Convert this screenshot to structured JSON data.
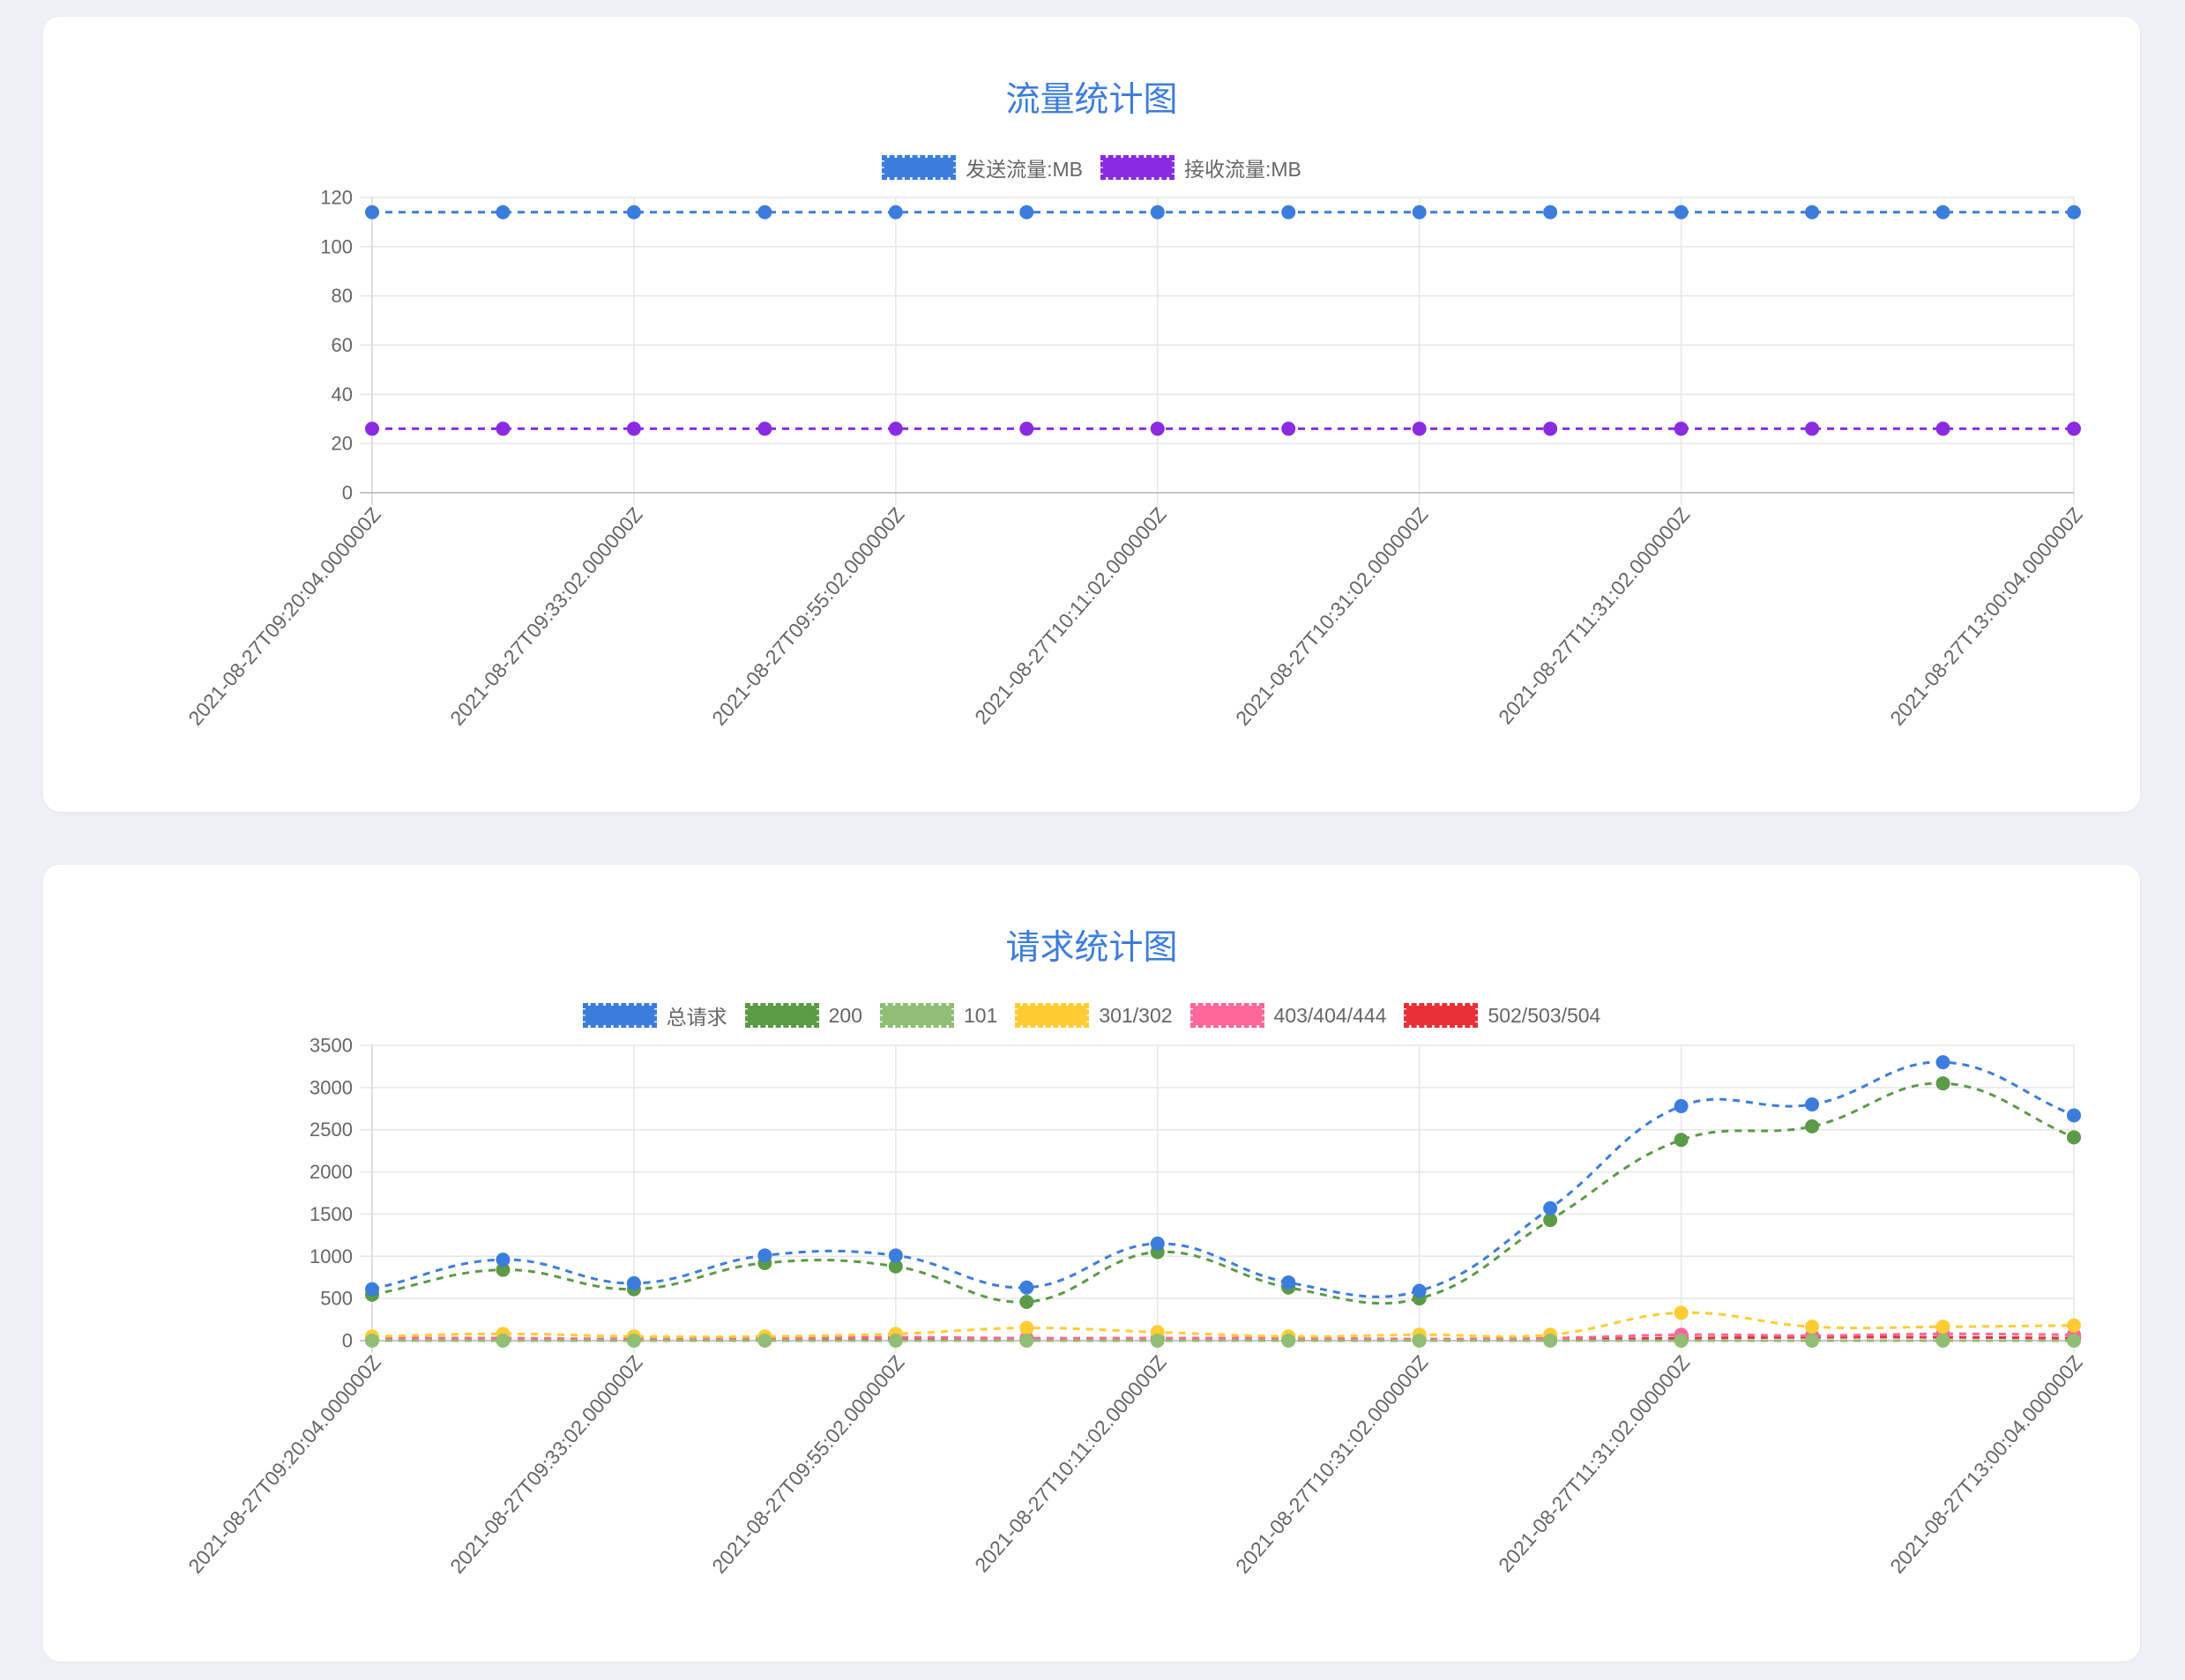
{
  "page": {
    "background": "#edf0f4"
  },
  "chart_data": [
    {
      "type": "line",
      "title": "流量统计图",
      "title_color": "#3b7ddd",
      "categories": [
        "2021-08-27T09:20:04.000000Z",
        "",
        "2021-08-27T09:33:02.000000Z",
        "",
        "2021-08-27T09:55:02.000000Z",
        "",
        "2021-08-27T10:11:02.000000Z",
        "",
        "2021-08-27T10:31:02.000000Z",
        "",
        "2021-08-27T11:31:02.000000Z",
        "",
        "",
        "2021-08-27T13:00:04.000000Z"
      ],
      "series": [
        {
          "name": "发送流量:MB",
          "color": "#3b7ddd",
          "values": [
            114,
            114,
            114,
            114,
            114,
            114,
            114,
            114,
            114,
            114,
            114,
            114,
            114,
            114
          ]
        },
        {
          "name": "接收流量:MB",
          "color": "#8a2be2",
          "values": [
            26,
            26,
            26,
            26,
            26,
            26,
            26,
            26,
            26,
            26,
            26,
            26,
            26,
            26
          ]
        }
      ],
      "xlabel": "",
      "ylabel": "",
      "ylim": [
        0,
        120
      ],
      "y_ticks": [
        0,
        20,
        40,
        60,
        80,
        100,
        120
      ],
      "grid": true,
      "legend": "top",
      "line_style": "dashed",
      "smooth": true
    },
    {
      "type": "line",
      "title": "请求统计图",
      "title_color": "#3b7ddd",
      "categories": [
        "2021-08-27T09:20:04.000000Z",
        "",
        "2021-08-27T09:33:02.000000Z",
        "",
        "2021-08-27T09:55:02.000000Z",
        "",
        "2021-08-27T10:11:02.000000Z",
        "",
        "2021-08-27T10:31:02.000000Z",
        "",
        "2021-08-27T11:31:02.000000Z",
        "",
        "",
        "2021-08-27T13:00:04.000000Z"
      ],
      "series": [
        {
          "name": "总请求",
          "color": "#3b7ddd",
          "values": [
            610,
            960,
            680,
            1010,
            1010,
            630,
            1150,
            690,
            590,
            1570,
            2780,
            2800,
            3300,
            2670
          ]
        },
        {
          "name": "200",
          "color": "#5b9a47",
          "values": [
            545,
            840,
            610,
            920,
            880,
            460,
            1050,
            630,
            500,
            1430,
            2380,
            2540,
            3050,
            2410
          ]
        },
        {
          "name": "101",
          "color": "#8fbe74",
          "values": [
            0,
            0,
            0,
            0,
            0,
            0,
            0,
            0,
            0,
            0,
            0,
            0,
            0,
            0
          ]
        },
        {
          "name": "301/302",
          "color": "#ffcc33",
          "values": [
            50,
            80,
            50,
            50,
            80,
            150,
            100,
            50,
            70,
            70,
            330,
            165,
            165,
            180
          ]
        },
        {
          "name": "403/404/444",
          "color": "#ff6699",
          "values": [
            30,
            30,
            20,
            30,
            40,
            30,
            30,
            30,
            20,
            30,
            70,
            60,
            80,
            70
          ]
        },
        {
          "name": "502/503/504",
          "color": "#e83038",
          "values": [
            10,
            10,
            10,
            10,
            20,
            10,
            10,
            10,
            10,
            10,
            30,
            40,
            40,
            30
          ]
        }
      ],
      "xlabel": "",
      "ylabel": "",
      "ylim": [
        0,
        3500
      ],
      "y_ticks": [
        0,
        500,
        1000,
        1500,
        2000,
        2500,
        3000,
        3500
      ],
      "grid": true,
      "legend": "top",
      "line_style": "dashed",
      "smooth": true
    }
  ]
}
